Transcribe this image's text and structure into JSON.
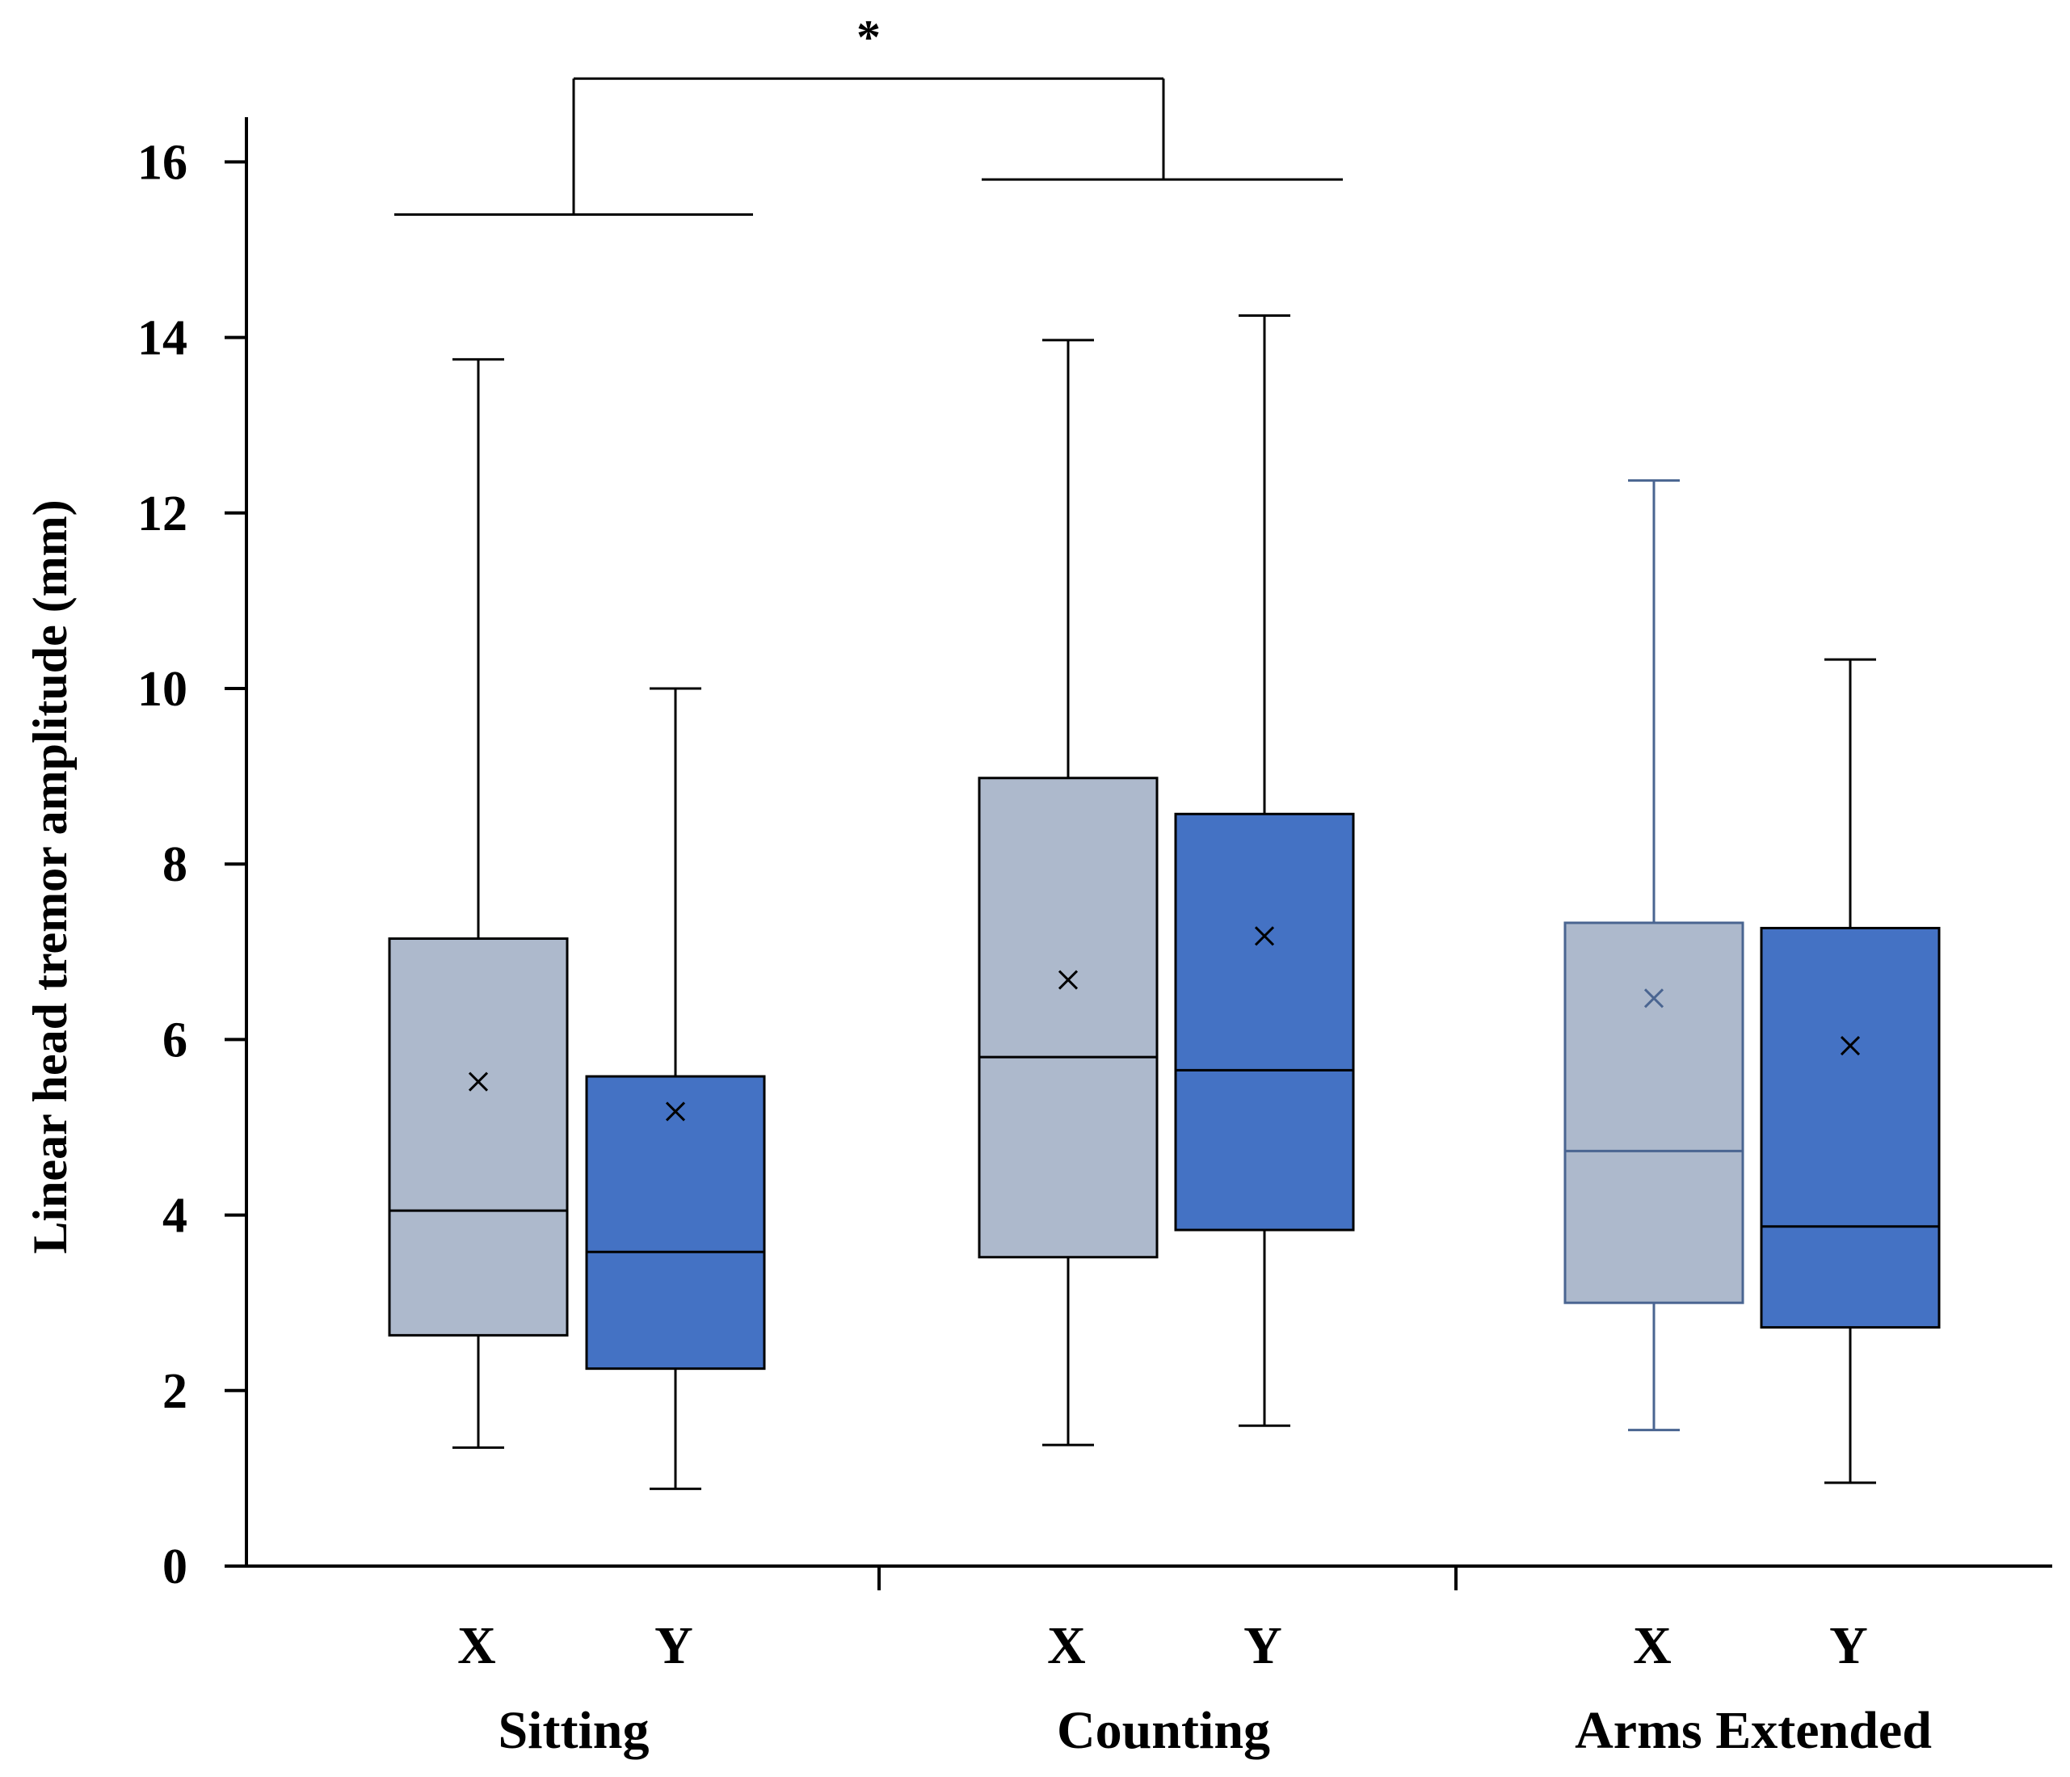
{
  "chart_data": {
    "type": "box",
    "title": "",
    "xlabel": "",
    "ylabel": "Linear head tremor amplitude (mm)",
    "ylim": [
      0,
      16.5
    ],
    "yticks": [
      0,
      2,
      4,
      6,
      8,
      10,
      12,
      14,
      16
    ],
    "ytick_labels": [
      "0",
      "2",
      "4",
      "6",
      "8",
      "10",
      "12",
      "14",
      "16"
    ],
    "grid": false,
    "colors": {
      "X": "#adb9cc",
      "Y": "#4472c4",
      "stroke": "#000000",
      "arms_x_stroke": "#4a6591"
    },
    "groups": [
      {
        "name": "Sitting",
        "boxes": [
          {
            "series": "X",
            "min": 1.35,
            "q1": 2.63,
            "median": 4.05,
            "q3": 7.15,
            "max": 13.75,
            "mean": 5.52
          },
          {
            "series": "Y",
            "min": 0.88,
            "q1": 2.25,
            "median": 3.58,
            "q3": 5.58,
            "max": 10.0,
            "mean": 5.18
          }
        ]
      },
      {
        "name": "Counting",
        "boxes": [
          {
            "series": "X",
            "min": 1.38,
            "q1": 3.52,
            "median": 5.8,
            "q3": 8.98,
            "max": 13.97,
            "mean": 6.68
          },
          {
            "series": "Y",
            "min": 1.6,
            "q1": 3.83,
            "median": 5.65,
            "q3": 8.57,
            "max": 14.25,
            "mean": 7.18
          }
        ]
      },
      {
        "name": "Arms Extended",
        "boxes": [
          {
            "series": "X",
            "min": 1.55,
            "q1": 3.0,
            "median": 4.73,
            "q3": 7.33,
            "max": 12.37,
            "mean": 6.47
          },
          {
            "series": "Y",
            "min": 0.95,
            "q1": 2.72,
            "median": 3.87,
            "q3": 7.27,
            "max": 10.33,
            "mean": 5.93
          }
        ]
      }
    ],
    "annotations": [
      {
        "type": "significance-bracket",
        "label": "*",
        "from_group": "Sitting",
        "to_group": "Counting",
        "left_y": 15.4,
        "right_y": 15.8,
        "top_y": 16.95
      }
    ]
  }
}
